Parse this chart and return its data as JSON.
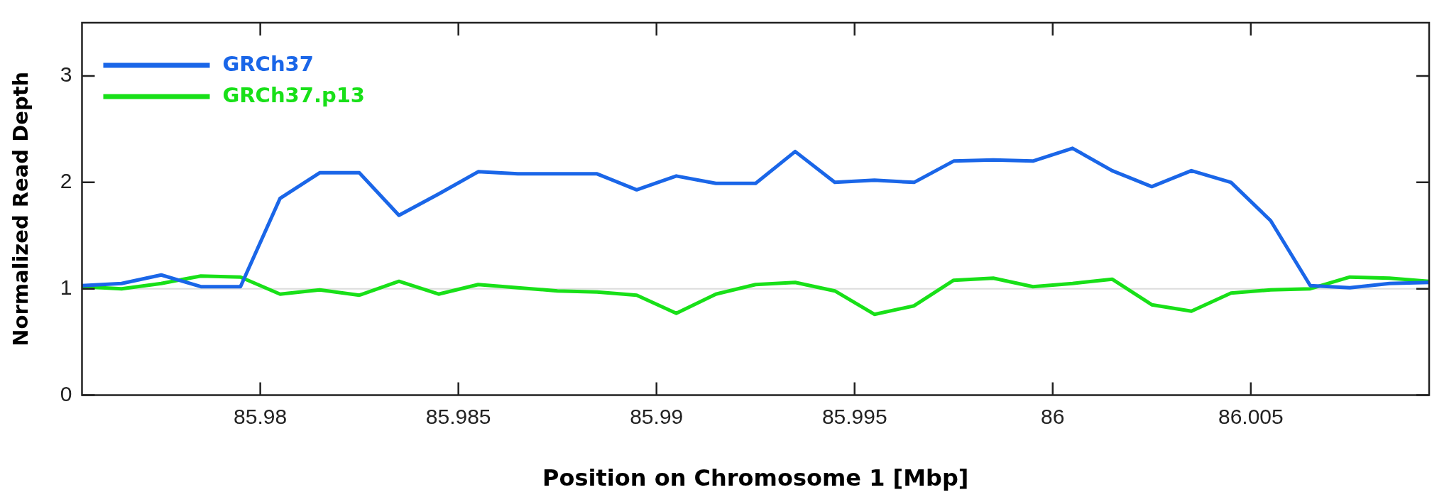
{
  "chart_data": {
    "type": "line",
    "xlabel": "Position on Chromosome 1 [Mbp]",
    "ylabel": "Normalized Read Depth",
    "x": [
      85.9755,
      85.9765,
      85.9775,
      85.9785,
      85.9795,
      85.9805,
      85.9815,
      85.9825,
      85.9835,
      85.9845,
      85.9855,
      85.9865,
      85.9875,
      85.9885,
      85.9895,
      85.9905,
      85.9915,
      85.9925,
      85.9935,
      85.9945,
      85.9955,
      85.9965,
      85.9975,
      85.9985,
      85.9995,
      86.0005,
      86.0015,
      86.0025,
      86.0035,
      86.0045,
      86.0055,
      86.0065,
      86.0075,
      86.0085,
      86.0095
    ],
    "series": [
      {
        "name": "GRCh37",
        "color": "#1a66e8",
        "values": [
          1.03,
          1.05,
          1.13,
          1.02,
          1.02,
          1.85,
          2.09,
          2.09,
          1.69,
          1.89,
          2.1,
          2.08,
          2.08,
          2.08,
          1.93,
          2.06,
          1.99,
          1.99,
          2.29,
          2.0,
          2.02,
          2.0,
          2.2,
          2.21,
          2.2,
          2.32,
          2.11,
          1.96,
          2.11,
          2.0,
          1.64,
          1.03,
          1.01,
          1.05,
          1.06
        ]
      },
      {
        "name": "GRCh37.p13",
        "color": "#18e018",
        "values": [
          1.02,
          1.0,
          1.05,
          1.12,
          1.11,
          0.95,
          0.99,
          0.94,
          1.07,
          0.95,
          1.04,
          1.01,
          0.98,
          0.97,
          0.94,
          0.77,
          0.95,
          1.04,
          1.06,
          0.98,
          0.76,
          0.84,
          1.08,
          1.1,
          1.02,
          1.05,
          1.09,
          0.85,
          0.79,
          0.96,
          0.99,
          1.0,
          1.11,
          1.1,
          1.07
        ]
      }
    ],
    "xlim": [
      85.9755,
      86.0095
    ],
    "xticks": [
      85.98,
      85.985,
      85.99,
      85.995,
      86,
      86.005
    ],
    "ylim": [
      0,
      3.5
    ],
    "yticks": [
      0,
      1,
      2,
      3
    ],
    "ref_lines": [
      {
        "axis": "y",
        "value": 1,
        "color": "#dddddd"
      }
    ],
    "grid": false,
    "legend": "top left",
    "marker": "none",
    "line_style": "solid"
  }
}
